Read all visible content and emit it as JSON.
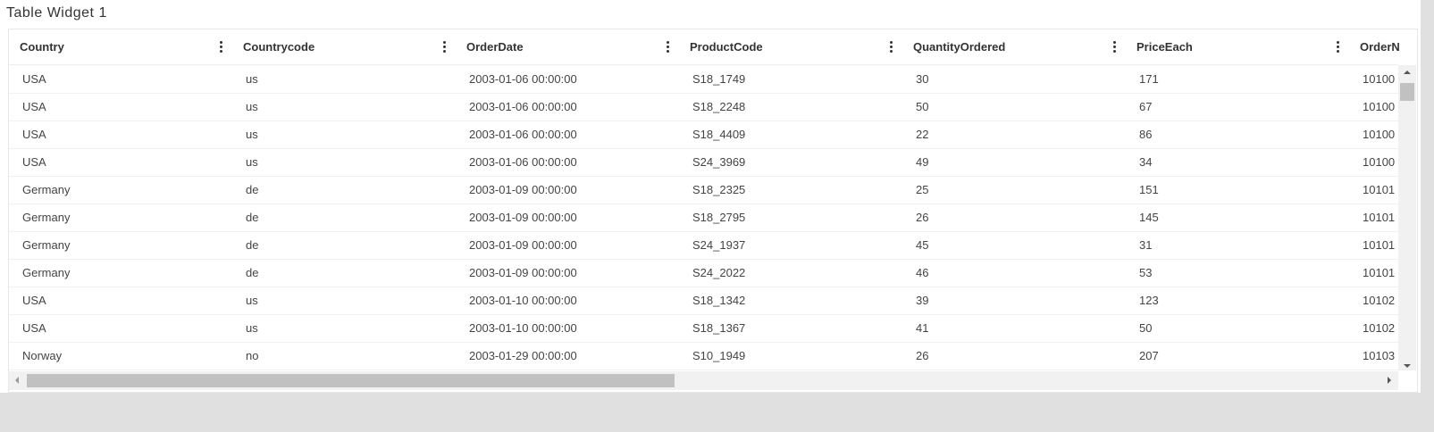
{
  "title": "Table Widget 1",
  "table": {
    "columns": [
      "Country",
      "Countrycode",
      "OrderDate",
      "ProductCode",
      "QuantityOrdered",
      "PriceEach",
      "OrderN"
    ],
    "rows": [
      [
        "USA",
        "us",
        "2003-01-06 00:00:00",
        "S18_1749",
        30,
        171,
        10100
      ],
      [
        "USA",
        "us",
        "2003-01-06 00:00:00",
        "S18_2248",
        50,
        67,
        10100
      ],
      [
        "USA",
        "us",
        "2003-01-06 00:00:00",
        "S18_4409",
        22,
        86,
        10100
      ],
      [
        "USA",
        "us",
        "2003-01-06 00:00:00",
        "S24_3969",
        49,
        34,
        10100
      ],
      [
        "Germany",
        "de",
        "2003-01-09 00:00:00",
        "S18_2325",
        25,
        151,
        10101
      ],
      [
        "Germany",
        "de",
        "2003-01-09 00:00:00",
        "S18_2795",
        26,
        145,
        10101
      ],
      [
        "Germany",
        "de",
        "2003-01-09 00:00:00",
        "S24_1937",
        45,
        31,
        10101
      ],
      [
        "Germany",
        "de",
        "2003-01-09 00:00:00",
        "S24_2022",
        46,
        53,
        10101
      ],
      [
        "USA",
        "us",
        "2003-01-10 00:00:00",
        "S18_1342",
        39,
        123,
        10102
      ],
      [
        "USA",
        "us",
        "2003-01-10 00:00:00",
        "S18_1367",
        41,
        50,
        10102
      ],
      [
        "Norway",
        "no",
        "2003-01-29 00:00:00",
        "S10_1949",
        26,
        207,
        10103
      ]
    ]
  }
}
